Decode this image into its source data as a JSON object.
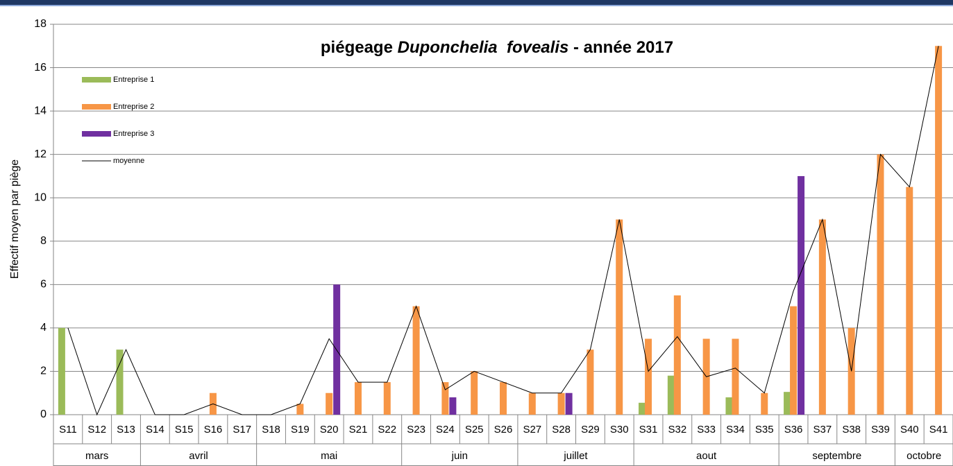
{
  "chart_data": {
    "type": "bar",
    "title_parts": [
      "piégeage",
      "Duponchelia  fovealis",
      "- année 2017"
    ],
    "y_label": "Effectif moyen par piège",
    "groups": [
      {
        "label": "mars",
        "categories": [
          "S11",
          "S12",
          "S13"
        ]
      },
      {
        "label": "avril",
        "categories": [
          "S14",
          "S15",
          "S16",
          "S17"
        ]
      },
      {
        "label": "mai",
        "categories": [
          "S18",
          "S19",
          "S20",
          "S21",
          "S22"
        ]
      },
      {
        "label": "juin",
        "categories": [
          "S23",
          "S24",
          "S25",
          "S26"
        ]
      },
      {
        "label": "juillet",
        "categories": [
          "S27",
          "S28",
          "S29",
          "S30"
        ]
      },
      {
        "label": "aout",
        "categories": [
          "S31",
          "S32",
          "S33",
          "S34",
          "S35"
        ]
      },
      {
        "label": "septembre",
        "categories": [
          "S36",
          "S37",
          "S38",
          "S39"
        ]
      },
      {
        "label": "octobre",
        "categories": [
          "S40",
          "S41"
        ]
      }
    ],
    "series": [
      {
        "name": "Entreprise 1",
        "color": "#9bbb59",
        "type": "bar",
        "values": [
          4,
          null,
          3,
          null,
          null,
          null,
          null,
          null,
          null,
          null,
          null,
          null,
          null,
          null,
          null,
          null,
          null,
          null,
          null,
          null,
          0.55,
          1.8,
          null,
          0.8,
          null,
          1.05,
          null,
          null,
          null,
          null,
          null
        ]
      },
      {
        "name": "Entreprise 2",
        "color": "#f79646",
        "type": "bar",
        "values": [
          null,
          null,
          null,
          null,
          null,
          1,
          null,
          null,
          0.5,
          1,
          1.5,
          1.5,
          5,
          1.5,
          2,
          1.5,
          1,
          1,
          3,
          9,
          3.5,
          5.5,
          3.5,
          3.5,
          1,
          5,
          9,
          4,
          12,
          10.5,
          17
        ]
      },
      {
        "name": "Entreprise 3",
        "color": "#7030a0",
        "type": "bar",
        "values": [
          null,
          null,
          null,
          null,
          null,
          null,
          null,
          null,
          null,
          6,
          null,
          null,
          null,
          0.8,
          null,
          null,
          null,
          1,
          null,
          null,
          null,
          null,
          null,
          null,
          null,
          11,
          null,
          null,
          null,
          null,
          null
        ]
      },
      {
        "name": "moyenne",
        "color": "#000000",
        "type": "line",
        "values": [
          4,
          0,
          3,
          0,
          0,
          0.5,
          0,
          0,
          0.5,
          3.5,
          1.5,
          1.5,
          5,
          1.15,
          2,
          1.5,
          1,
          1,
          3,
          9,
          2,
          3.6,
          1.75,
          2.15,
          1,
          5.7,
          9,
          2,
          12,
          10.5,
          17
        ]
      }
    ],
    "ylim": [
      0,
      18
    ],
    "yticks": [
      0,
      2,
      4,
      6,
      8,
      10,
      12,
      14,
      16,
      18
    ],
    "grid": true
  }
}
